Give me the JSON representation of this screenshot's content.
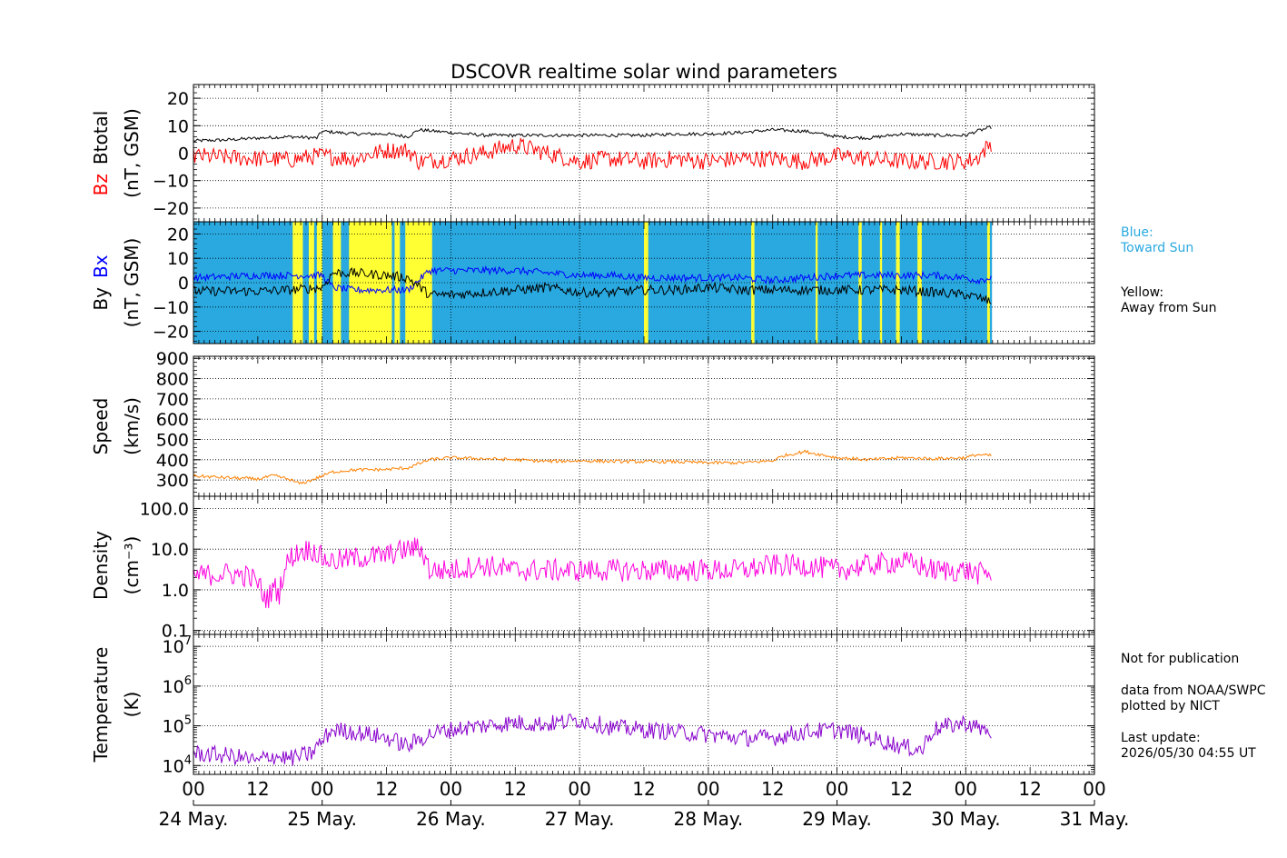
{
  "title": "DSCOVR realtime solar wind parameters",
  "side_text": {
    "blue_label": "Blue:",
    "blue_desc": "Toward Sun",
    "yellow_label": "Yellow:",
    "yellow_desc": "Away from Sun",
    "not_for_publication": "Not for publication",
    "data_from": "data from NOAA/SWPC",
    "plotted_by": "plotted by NICT",
    "last_update_label": "Last update:",
    "last_update_value": "2026/05/30 04:55 UT"
  },
  "colors": {
    "btotal": "#000000",
    "bz": "#ff0000",
    "bx": "#0000ff",
    "by": "#000000",
    "toward_sun": "#29a9e0",
    "away_from_sun": "#ffff33",
    "speed": "#ff8000",
    "density": "#ff00dd",
    "temperature": "#8800cc"
  },
  "chart_data": {
    "type": "line",
    "title": "DSCOVR realtime solar wind parameters",
    "x_unit": "hours since 24 May 00 UT",
    "x_range_hours": [
      0,
      168
    ],
    "data_end_hours": 148.9,
    "x_hour_ticks": [
      "00",
      "12",
      "00",
      "12",
      "00",
      "12",
      "00",
      "12",
      "00",
      "12",
      "00",
      "12",
      "00",
      "12",
      "00"
    ],
    "x_date_ticks": [
      "24 May.",
      "25 May.",
      "26 May.",
      "27 May.",
      "28 May.",
      "29 May.",
      "30 May.",
      "31 May."
    ],
    "panels": [
      {
        "id": "mag",
        "ylabel_parts": [
          "Bz",
          "Btotal"
        ],
        "ylabel_unit": "(nT, GSM)",
        "ylim": [
          -25,
          25
        ],
        "yticks": [
          "20",
          "10",
          "0",
          "−10",
          "−20"
        ],
        "series": [
          {
            "name": "Btotal",
            "color_key": "btotal",
            "x": [
              0,
              6,
              12,
              18,
              23,
              24,
              30,
              36,
              40,
              42,
              48,
              54,
              60,
              66,
              72,
              78,
              84,
              90,
              96,
              102,
              108,
              114,
              120,
              126,
              132,
              138,
              144,
              146,
              148.9
            ],
            "y": [
              4.5,
              4.8,
              5.5,
              6,
              5.5,
              8,
              7,
              7,
              6,
              8.5,
              7.5,
              6.5,
              6.5,
              6.5,
              6.5,
              6.5,
              6.5,
              7,
              7,
              7.5,
              8.5,
              8,
              6,
              5.5,
              7,
              6.5,
              6.5,
              8,
              9.5
            ]
          },
          {
            "name": "Bz",
            "color_key": "bz",
            "x": [
              0,
              6,
              12,
              18,
              23,
              24,
              30,
              36,
              40,
              42,
              48,
              54,
              60,
              66,
              72,
              78,
              84,
              90,
              96,
              102,
              108,
              114,
              120,
              126,
              132,
              138,
              144,
              146,
              148.9
            ],
            "y": [
              -1,
              -1.5,
              -2,
              -2.5,
              -1,
              -1,
              -2,
              1,
              1,
              -3,
              -2,
              0,
              3,
              0,
              -3,
              -2,
              -3,
              -2,
              -3,
              -2,
              -2,
              -3,
              -1,
              -2,
              -3,
              -3,
              -3,
              -2,
              4
            ]
          }
        ]
      },
      {
        "id": "bxby",
        "ylabel_parts": [
          "By",
          "Bx"
        ],
        "ylabel_unit": "(nT, GSM)",
        "ylim": [
          -25,
          25
        ],
        "yticks": [
          "20",
          "10",
          "0",
          "−10",
          "−20"
        ],
        "background_sector": {
          "default": "toward_sun",
          "away_from_sun_intervals_hours": [
            [
              18.5,
              20.4
            ],
            [
              21.5,
              22.5
            ],
            [
              23,
              24
            ],
            [
              26,
              27.5
            ],
            [
              29,
              37
            ],
            [
              37.5,
              38.5
            ],
            [
              39.5,
              44.5
            ],
            [
              84,
              84.8
            ],
            [
              104,
              104.6
            ],
            [
              116,
              116.4
            ],
            [
              124,
              124.6
            ],
            [
              128,
              128.4
            ],
            [
              131,
              131.7
            ],
            [
              135,
              135.8
            ],
            [
              148,
              148.5
            ]
          ]
        },
        "series": [
          {
            "name": "Bx",
            "color_key": "bx",
            "x": [
              0,
              6,
              12,
              18,
              24,
              26,
              30,
              36,
              40,
              44,
              48,
              54,
              60,
              66,
              72,
              78,
              84,
              90,
              96,
              102,
              108,
              114,
              120,
              126,
              132,
              138,
              144,
              146,
              148.9
            ],
            "y": [
              2,
              2.5,
              3,
              3,
              3,
              -2,
              -3,
              -3,
              -3,
              5,
              5,
              5,
              5,
              4,
              3,
              3,
              2,
              2,
              2,
              2,
              1,
              2,
              3,
              3,
              3,
              3,
              2,
              1,
              2
            ]
          },
          {
            "name": "By",
            "color_key": "by",
            "x": [
              0,
              6,
              12,
              18,
              24,
              26,
              30,
              36,
              40,
              44,
              48,
              54,
              60,
              66,
              72,
              78,
              84,
              90,
              96,
              102,
              108,
              114,
              120,
              126,
              132,
              138,
              144,
              146,
              148.9
            ],
            "y": [
              -3.5,
              -3.5,
              -3.5,
              -3,
              -2,
              4,
              4,
              3,
              2,
              -5,
              -5,
              -4,
              -3,
              -2,
              -4,
              -4,
              -3,
              -3,
              -2,
              -3,
              -3,
              -3,
              -3,
              -3,
              -3,
              -4,
              -5,
              -6,
              -8
            ]
          }
        ]
      },
      {
        "id": "speed",
        "ylabel_parts": [
          "Speed"
        ],
        "ylabel_unit": "(km/s)",
        "ylim": [
          220,
          910
        ],
        "yticks": [
          "900",
          "800",
          "700",
          "600",
          "500",
          "400",
          "300"
        ],
        "series": [
          {
            "name": "Speed",
            "color_key": "speed",
            "x": [
              0,
              6,
              12,
              15,
              18,
              19,
              20,
              22,
              24,
              26,
              30,
              36,
              40,
              44,
              48,
              54,
              60,
              66,
              72,
              78,
              84,
              90,
              96,
              102,
              108,
              110,
              114,
              117,
              120,
              126,
              132,
              138,
              144,
              146,
              148.9
            ],
            "y": [
              320,
              312,
              305,
              322,
              302,
              290,
              282,
              300,
              320,
              340,
              350,
              352,
              360,
              400,
              410,
              405,
              400,
              392,
              395,
              392,
              390,
              390,
              385,
              385,
              395,
              420,
              440,
              425,
              410,
              400,
              410,
              405,
              410,
              425,
              420
            ]
          }
        ]
      },
      {
        "id": "density",
        "ylabel_parts": [
          "Density"
        ],
        "ylabel_unit": "(cm⁻³)",
        "scale": "log",
        "ylim": [
          0.08,
          200
        ],
        "yticks": [
          "100.0",
          "10.0",
          "1.0",
          "0.1"
        ],
        "series": [
          {
            "name": "Density",
            "color_key": "density",
            "x": [
              0,
              6,
              10,
              12,
              13,
              14,
              15,
              16,
              17,
              18,
              20,
              22,
              24,
              26,
              30,
              36,
              40,
              42,
              44,
              48,
              54,
              60,
              66,
              72,
              78,
              84,
              90,
              96,
              102,
              108,
              114,
              120,
              126,
              132,
              138,
              144,
              146,
              148.9
            ],
            "y": [
              2.2,
              2.5,
              2.2,
              1.5,
              0.7,
              0.6,
              1.2,
              0.8,
              3,
              6,
              9,
              10,
              6,
              5,
              6,
              7,
              10,
              11,
              3,
              3,
              4,
              3,
              3,
              3,
              3,
              3,
              3,
              3,
              3,
              4,
              4,
              3,
              4,
              5,
              3,
              3,
              2.5,
              2.5
            ]
          }
        ]
      },
      {
        "id": "temperature",
        "ylabel_parts": [
          "Temperature"
        ],
        "ylabel_unit": "(K)",
        "scale": "log",
        "ylim": [
          6000,
          20000000
        ],
        "yticks": [
          "10^7",
          "10^6",
          "10^5",
          "10^4"
        ],
        "series": [
          {
            "name": "Temperature",
            "color_key": "temperature",
            "x": [
              0,
              6,
              10,
              12,
              14,
              18,
              22,
              24,
              26,
              30,
              36,
              40,
              44,
              48,
              54,
              60,
              66,
              72,
              78,
              84,
              90,
              96,
              102,
              108,
              114,
              120,
              126,
              132,
              136,
              138,
              144,
              146,
              148.9
            ],
            "y": [
              20000,
              18000,
              15000,
              12000,
              18000,
              15000,
              20000,
              40000,
              80000,
              70000,
              50000,
              30000,
              60000,
              80000,
              100000,
              120000,
              110000,
              140000,
              90000,
              80000,
              70000,
              60000,
              50000,
              50000,
              70000,
              80000,
              50000,
              30000,
              25000,
              80000,
              120000,
              90000,
              70000
            ]
          }
        ]
      }
    ]
  }
}
